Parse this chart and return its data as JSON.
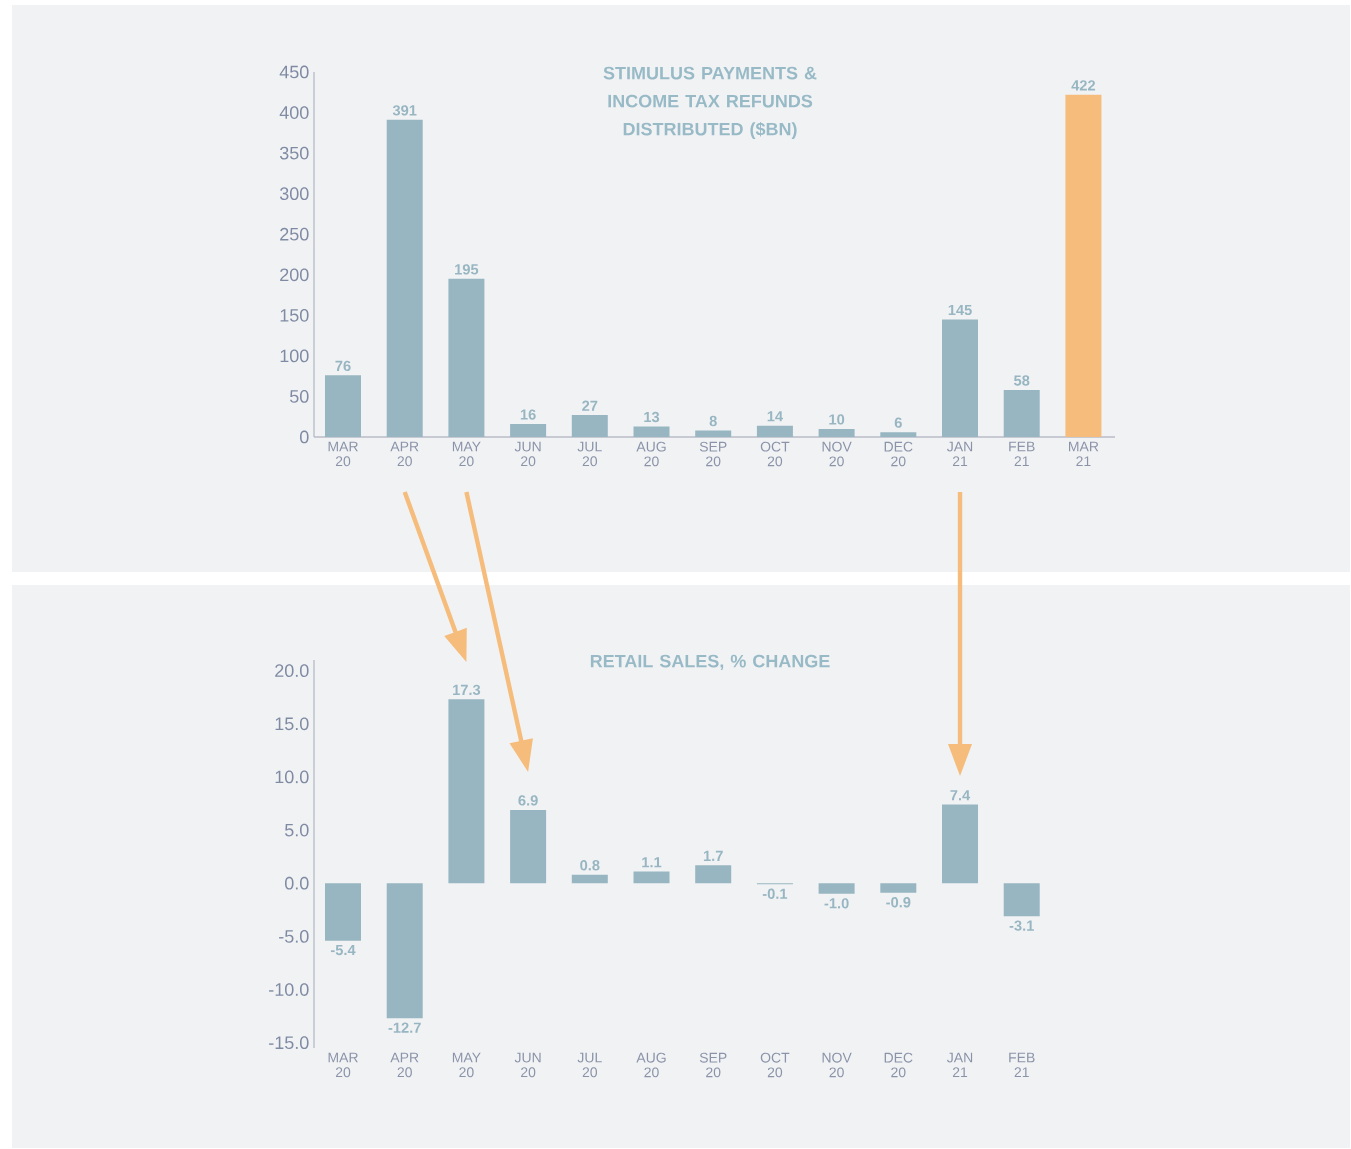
{
  "chart_data": [
    {
      "type": "bar",
      "title": "STIMULUS PAYMENTS & INCOME TAX REFUNDS DISTRIBUTED ($BN)",
      "categories": [
        "MAR 20",
        "APR 20",
        "MAY 20",
        "JUN 20",
        "JUL 20",
        "AUG 20",
        "SEP 20",
        "OCT 20",
        "NOV 20",
        "DEC 20",
        "JAN 21",
        "FEB 21",
        "MAR 21"
      ],
      "values": [
        76,
        391,
        195,
        16,
        27,
        13,
        8,
        14,
        10,
        6,
        145,
        58,
        422
      ],
      "colors": [
        "#97b6c2",
        "#97b6c2",
        "#97b6c2",
        "#97b6c2",
        "#97b6c2",
        "#97b6c2",
        "#97b6c2",
        "#97b6c2",
        "#97b6c2",
        "#97b6c2",
        "#97b6c2",
        "#97b6c2",
        "#f5bc7b"
      ],
      "ylim": [
        0,
        450
      ],
      "yticks": [
        0,
        50,
        100,
        150,
        200,
        250,
        300,
        350,
        400,
        450
      ],
      "data_labels": true,
      "grid": false
    },
    {
      "type": "bar",
      "title": "RETAIL SALES, % CHANGE",
      "categories": [
        "MAR 20",
        "APR 20",
        "MAY 20",
        "JUN 20",
        "JUL 20",
        "AUG 20",
        "SEP 20",
        "OCT 20",
        "NOV 20",
        "DEC 20",
        "JAN 21",
        "FEB 21"
      ],
      "values": [
        -5.4,
        -12.7,
        17.3,
        6.9,
        0.8,
        1.1,
        1.7,
        -0.1,
        -1.0,
        -0.9,
        7.4,
        -3.1
      ],
      "value_labels": [
        "-5.4",
        "-12.7",
        "17.3",
        "6.9",
        "0.8",
        "1.1",
        "1.7",
        "-0.1",
        "-1.0",
        "-0.9",
        "7.4",
        "-3.1"
      ],
      "color": "#97b6c2",
      "ylim": [
        -15.5,
        21
      ],
      "yticks": [
        {
          "value": -15,
          "label": "-15.0"
        },
        {
          "value": -10,
          "label": "-10.0"
        },
        {
          "value": -5,
          "label": "-5.0"
        },
        {
          "value": 0,
          "label": "0.0"
        },
        {
          "value": 5,
          "label": "5.0"
        },
        {
          "value": 10,
          "label": "10.0"
        },
        {
          "value": 15,
          "label": "15.0"
        },
        {
          "value": 20,
          "label": "20.0"
        }
      ],
      "grid": false
    }
  ]
}
